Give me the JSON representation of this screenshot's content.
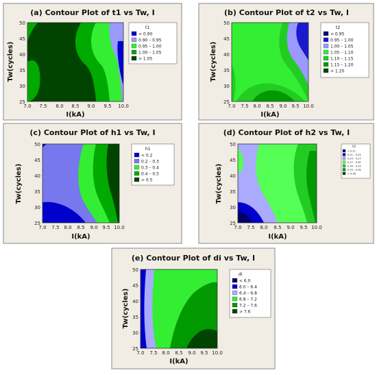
{
  "panels": [
    {
      "title": "(a) Contour Plot of t1 vs Tw, I",
      "xlabel": "I(kA)",
      "ylabel": "Tw(cycles)",
      "xticks": [
        "7.0",
        "7.5",
        "8.0",
        "8.5",
        "9.0",
        "9.5",
        "10.0"
      ],
      "yticks": [
        "25",
        "30",
        "35",
        "40",
        "45",
        "50"
      ],
      "legend_title": "t1",
      "legend": [
        {
          "label": "<  0.90",
          "color": "#0000cc"
        },
        {
          "label": "0.90 – 0.95",
          "color": "#9999ff"
        },
        {
          "label": "0.95 – 1.00",
          "color": "#33ee33"
        },
        {
          "label": "1.00 – 1.05",
          "color": "#00aa00"
        },
        {
          "label": ">  1.05",
          "color": "#004400"
        }
      ]
    },
    {
      "title": "(b) Contour Plot of t2 vs Tw, I",
      "xlabel": "I(kA)",
      "ylabel": "Tw(cycles)",
      "xticks": [
        "7.0",
        "7.5",
        "8.0",
        "8.5",
        "9.0",
        "9.5",
        "10.0"
      ],
      "yticks": [
        "25",
        "30",
        "35",
        "40",
        "45",
        "50"
      ],
      "legend_title": "t2",
      "legend": [
        {
          "label": "<  0.95",
          "color": "#000066"
        },
        {
          "label": "0.95 – 1.00",
          "color": "#1a1acc"
        },
        {
          "label": "1.00 – 1.05",
          "color": "#9999ff"
        },
        {
          "label": "1.05 – 1.10",
          "color": "#33ee33"
        },
        {
          "label": "1.10 – 1.15",
          "color": "#22cc22"
        },
        {
          "label": "1.15 – 1.20",
          "color": "#009900"
        },
        {
          "label": ">  1.20",
          "color": "#004400"
        }
      ]
    },
    {
      "title": "(c) Contour Plot of h1 vs Tw, I",
      "xlabel": "I(kA)",
      "ylabel": "Tw(cycles)",
      "xticks": [
        "7.0",
        "7.5",
        "8.0",
        "8.5",
        "9.0",
        "9.5",
        "10.0"
      ],
      "yticks": [
        "25",
        "30",
        "35",
        "40",
        "45",
        "50"
      ],
      "legend_title": "h1",
      "legend": [
        {
          "label": "<  0.2",
          "color": "#0000cc"
        },
        {
          "label": "0.2 – 0.3",
          "color": "#7777ee"
        },
        {
          "label": "0.3 – 0.4",
          "color": "#33ee33"
        },
        {
          "label": "0.4 – 0.5",
          "color": "#00aa00"
        },
        {
          "label": ">  0.5",
          "color": "#004400"
        }
      ]
    },
    {
      "title": "(d) Contour Plot of h2 vs Tw, I",
      "xlabel": "I(kA)",
      "ylabel": "Tw(cycles)",
      "xticks": [
        "7.0",
        "7.5",
        "8.0",
        "8.5",
        "9.0",
        "9.5",
        "10.0"
      ],
      "yticks": [
        "25",
        "30",
        "35",
        "40",
        "45",
        "50"
      ],
      "legend_title": "h2",
      "legend": [
        {
          "label": "<  0.21",
          "color": "#000066"
        },
        {
          "label": "0.21 – 0.24",
          "color": "#0000cc"
        },
        {
          "label": "0.24 – 0.27",
          "color": "#aaaaff"
        },
        {
          "label": "0.27 – 0.30",
          "color": "#55ff55"
        },
        {
          "label": "0.30 – 0.33",
          "color": "#22cc22"
        },
        {
          "label": "0.33 – 0.36",
          "color": "#009900"
        },
        {
          "label": ">  0.36",
          "color": "#004400"
        }
      ]
    },
    {
      "title": "(e) Contour Plot of di vs Tw, I",
      "xlabel": "I(kA)",
      "ylabel": "Tw(cycles)",
      "xticks": [
        "7.0",
        "7.5",
        "8.0",
        "8.5",
        "9.0",
        "9.5",
        "10.0"
      ],
      "yticks": [
        "25",
        "30",
        "35",
        "40",
        "45",
        "50"
      ],
      "legend_title": "di",
      "legend": [
        {
          "label": "<  6.0",
          "color": "#000066"
        },
        {
          "label": "6.0 – 6.4",
          "color": "#0000cc"
        },
        {
          "label": "6.4 – 6.8",
          "color": "#aaaaff"
        },
        {
          "label": "6.8 – 7.2",
          "color": "#33ee33"
        },
        {
          "label": "7.2 – 7.6",
          "color": "#009900"
        },
        {
          "label": ">  7.6",
          "color": "#004400"
        }
      ]
    }
  ],
  "chart_data": [
    {
      "type": "heatmap",
      "title": "(a) Contour Plot of t1 vs Tw, I",
      "xlabel": "I(kA)",
      "ylabel": "Tw(cycles)",
      "xlim": [
        7.0,
        10.0
      ],
      "ylim": [
        25,
        50
      ],
      "z_variable": "t1",
      "levels": [
        "< 0.90",
        "0.90 – 0.95",
        "0.95 – 1.00",
        "1.00 – 1.05",
        "> 1.05"
      ],
      "colors": {
        "lowest": "#0000cc",
        "mid_low": "#9999ff",
        "mid": "#33ee33",
        "mid_high": "#00aa00",
        "highest": "#004400"
      }
    },
    {
      "type": "heatmap",
      "title": "(b) Contour Plot of t2 vs Tw, I",
      "xlabel": "I(kA)",
      "ylabel": "Tw(cycles)",
      "xlim": [
        7.0,
        10.0
      ],
      "ylim": [
        25,
        50
      ],
      "z_variable": "t2",
      "levels": [
        "< 0.95",
        "0.95 – 1.00",
        "1.00 – 1.05",
        "1.05 – 1.10",
        "1.10 – 1.15",
        "1.15 – 1.20",
        "> 1.20"
      ]
    },
    {
      "type": "heatmap",
      "title": "(c) Contour Plot of h1 vs Tw, I",
      "xlabel": "I(kA)",
      "ylabel": "Tw(cycles)",
      "xlim": [
        7.0,
        10.0
      ],
      "ylim": [
        25,
        50
      ],
      "z_variable": "h1",
      "levels": [
        "< 0.2",
        "0.2 – 0.3",
        "0.3 – 0.4",
        "0.4 – 0.5",
        "> 0.5"
      ]
    },
    {
      "type": "heatmap",
      "title": "(d) Contour Plot of h2 vs Tw, I",
      "xlabel": "I(kA)",
      "ylabel": "Tw(cycles)",
      "xlim": [
        7.0,
        10.0
      ],
      "ylim": [
        25,
        50
      ],
      "z_variable": "h2",
      "levels": [
        "< 0.21",
        "0.21 – 0.24",
        "0.24 – 0.27",
        "0.27 – 0.30",
        "0.30 – 0.33",
        "0.33 – 0.36",
        "> 0.36"
      ]
    },
    {
      "type": "heatmap",
      "title": "(e) Contour Plot of di vs Tw, I",
      "xlabel": "I(kA)",
      "ylabel": "Tw(cycles)",
      "xlim": [
        7.0,
        10.0
      ],
      "ylim": [
        25,
        50
      ],
      "z_variable": "di",
      "levels": [
        "< 6.0",
        "6.0 – 6.4",
        "6.4 – 6.8",
        "6.8 – 7.2",
        "7.2 – 7.6",
        "> 7.6"
      ]
    }
  ]
}
